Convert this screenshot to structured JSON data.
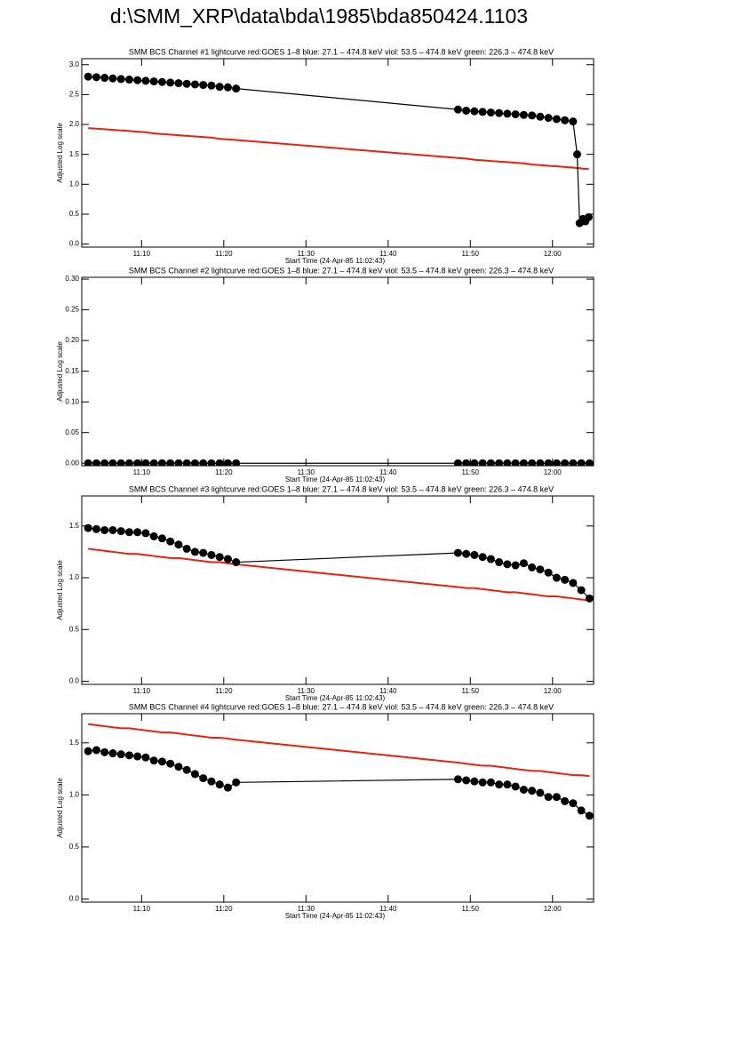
{
  "page_title": "d:\\SMM_XRP\\data\\bda\\1985\\bda850424.1103",
  "chart_data": [
    {
      "type": "line",
      "title": "SMM BCS Channel #1 lightcurve  red:GOES 1–8  blue: 27.1 – 474.8 keV  viol: 53.5 – 474.8 keV  green: 226.3 – 474.8 keV",
      "x_label": "Start Time (24-Apr-85 11:02:43)",
      "y_label": "Adjusted Log scale",
      "xlim": [
        662.72,
        725
      ],
      "ylim": [
        -0.05,
        3.1
      ],
      "xticks": [
        {
          "value": 670,
          "label": "11:10"
        },
        {
          "value": 680,
          "label": "11:20"
        },
        {
          "value": 690,
          "label": "11:30"
        },
        {
          "value": 700,
          "label": "11:40"
        },
        {
          "value": 710,
          "label": "11:50"
        },
        {
          "value": 720,
          "label": "12:00"
        }
      ],
      "yticks": [
        {
          "value": 0,
          "label": "0.0"
        },
        {
          "value": 0.5,
          "label": "0.5"
        },
        {
          "value": 1,
          "label": "1.0"
        },
        {
          "value": 1.5,
          "label": "1.5"
        },
        {
          "value": 2,
          "label": "2.0"
        },
        {
          "value": 2.5,
          "label": "2.5"
        },
        {
          "value": 3,
          "label": "3.0"
        }
      ],
      "x": [
        663.5,
        664.5,
        665.5,
        666.5,
        667.5,
        668.5,
        669.5,
        670.5,
        671.5,
        672.5,
        673.5,
        674.5,
        675.5,
        676.5,
        677.5,
        678.5,
        679.5,
        680.5,
        681.5,
        708.5,
        709.5,
        710.5,
        711.5,
        712.5,
        713.5,
        714.5,
        715.5,
        716.5,
        717.5,
        718.5,
        719.5,
        720.5,
        721.5,
        722.5,
        723.0,
        723.3,
        723.7,
        724.0,
        724.4
      ],
      "series": [
        {
          "color": "#e8220f",
          "markers": false,
          "values": [
            1.94,
            1.93,
            1.92,
            1.91,
            1.9,
            1.89,
            1.88,
            1.87,
            1.85,
            1.84,
            1.83,
            1.82,
            1.81,
            1.8,
            1.79,
            1.78,
            1.76,
            1.75,
            1.74,
            1.44,
            1.43,
            1.41,
            1.4,
            1.39,
            1.38,
            1.37,
            1.36,
            1.35,
            1.33,
            1.32,
            1.31,
            1.3,
            1.29,
            1.28,
            1.27,
            1.27,
            1.26,
            1.26,
            1.26
          ]
        },
        {
          "color": "#000000",
          "markers": true,
          "values": [
            2.8,
            2.79,
            2.78,
            2.77,
            2.76,
            2.75,
            2.74,
            2.73,
            2.72,
            2.71,
            2.7,
            2.69,
            2.68,
            2.67,
            2.66,
            2.65,
            2.63,
            2.62,
            2.6,
            2.25,
            2.23,
            2.22,
            2.21,
            2.2,
            2.19,
            2.18,
            2.17,
            2.16,
            2.15,
            2.13,
            2.11,
            2.09,
            2.07,
            2.05,
            1.5,
            0.35,
            0.42,
            0.38,
            0.45
          ]
        }
      ]
    },
    {
      "type": "line",
      "title": "SMM BCS Channel #2 lightcurve  red:GOES 1–8  blue: 27.1 – 474.8 keV  viol: 53.5 – 474.8 keV  green: 226.3 – 474.8 keV",
      "x_label": "Start Time (24-Apr-85 11:02:43)",
      "y_label": "Adjusted Log scale",
      "xlim": [
        662.72,
        725
      ],
      "ylim": [
        -0.004,
        0.303
      ],
      "xticks": [
        {
          "value": 670,
          "label": "11:10"
        },
        {
          "value": 680,
          "label": "11:20"
        },
        {
          "value": 690,
          "label": "11:30"
        },
        {
          "value": 700,
          "label": "11:40"
        },
        {
          "value": 710,
          "label": "11:50"
        },
        {
          "value": 720,
          "label": "12:00"
        }
      ],
      "yticks": [
        {
          "value": 0,
          "label": "0.00"
        },
        {
          "value": 0.05,
          "label": "0.05"
        },
        {
          "value": 0.1,
          "label": "0.10"
        },
        {
          "value": 0.15,
          "label": "0.15"
        },
        {
          "value": 0.2,
          "label": "0.20"
        },
        {
          "value": 0.25,
          "label": "0.25"
        },
        {
          "value": 0.3,
          "label": "0.30"
        }
      ],
      "x": [
        663.5,
        664.5,
        665.5,
        666.5,
        667.5,
        668.5,
        669.5,
        670.5,
        671.5,
        672.5,
        673.5,
        674.5,
        675.5,
        676.5,
        677.5,
        678.5,
        679.5,
        680.5,
        681.5,
        708.5,
        709.5,
        710.5,
        711.5,
        712.5,
        713.5,
        714.5,
        715.5,
        716.5,
        717.5,
        718.5,
        719.5,
        720.5,
        721.5,
        722.5,
        723.5,
        724.5
      ],
      "series": [
        {
          "color": "#000000",
          "markers": true,
          "values": [
            0,
            0,
            0,
            0,
            0,
            0,
            0,
            0,
            0,
            0,
            0,
            0,
            0,
            0,
            0,
            0,
            0,
            0,
            0,
            0,
            0,
            0,
            0,
            0,
            0,
            0,
            0,
            0,
            0,
            0,
            0,
            0,
            0,
            0,
            0,
            0
          ]
        }
      ]
    },
    {
      "type": "line",
      "title": "SMM BCS Channel #3 lightcurve  red:GOES 1–8  blue: 27.1 – 474.8 keV  viol: 53.5 – 474.8 keV  green: 226.3 – 474.8 keV",
      "x_label": "Start Time (24-Apr-85 11:02:43)",
      "y_label": "Adjusted Log scale",
      "xlim": [
        662.72,
        725
      ],
      "ylim": [
        -0.03,
        1.79
      ],
      "xticks": [
        {
          "value": 670,
          "label": "11:10"
        },
        {
          "value": 680,
          "label": "11:20"
        },
        {
          "value": 690,
          "label": "11:30"
        },
        {
          "value": 700,
          "label": "11:40"
        },
        {
          "value": 710,
          "label": "11:50"
        },
        {
          "value": 720,
          "label": "12:00"
        }
      ],
      "yticks": [
        {
          "value": 0,
          "label": "0.0"
        },
        {
          "value": 0.5,
          "label": "0.5"
        },
        {
          "value": 1,
          "label": "1.0"
        },
        {
          "value": 1.5,
          "label": "1.5"
        }
      ],
      "x": [
        663.5,
        664.5,
        665.5,
        666.5,
        667.5,
        668.5,
        669.5,
        670.5,
        671.5,
        672.5,
        673.5,
        674.5,
        675.5,
        676.5,
        677.5,
        678.5,
        679.5,
        680.5,
        681.5,
        708.5,
        709.5,
        710.5,
        711.5,
        712.5,
        713.5,
        714.5,
        715.5,
        716.5,
        717.5,
        718.5,
        719.5,
        720.5,
        721.5,
        722.5,
        723.5,
        724.5
      ],
      "series": [
        {
          "color": "#e8220f",
          "markers": false,
          "values": [
            1.28,
            1.27,
            1.26,
            1.25,
            1.24,
            1.23,
            1.23,
            1.22,
            1.21,
            1.2,
            1.19,
            1.19,
            1.18,
            1.17,
            1.16,
            1.15,
            1.15,
            1.14,
            1.13,
            0.91,
            0.9,
            0.9,
            0.89,
            0.88,
            0.87,
            0.86,
            0.86,
            0.85,
            0.84,
            0.83,
            0.82,
            0.82,
            0.81,
            0.8,
            0.79,
            0.78
          ]
        },
        {
          "color": "#000000",
          "markers": true,
          "values": [
            1.48,
            1.47,
            1.46,
            1.46,
            1.45,
            1.44,
            1.44,
            1.43,
            1.4,
            1.38,
            1.35,
            1.32,
            1.28,
            1.25,
            1.24,
            1.22,
            1.2,
            1.18,
            1.15,
            1.24,
            1.23,
            1.22,
            1.2,
            1.18,
            1.15,
            1.13,
            1.12,
            1.14,
            1.1,
            1.08,
            1.05,
            1.0,
            0.98,
            0.95,
            0.88,
            0.8
          ]
        }
      ]
    },
    {
      "type": "line",
      "title": "SMM BCS Channel #4 lightcurve  red:GOES 1–8  blue: 27.1 – 474.8 keV  viol: 53.5 – 474.8 keV  green: 226.3 – 474.8 keV",
      "x_label": "Start Time (24-Apr-85 11:02:43)",
      "y_label": "Adjusted Log scale",
      "xlim": [
        662.72,
        725
      ],
      "ylim": [
        -0.03,
        1.78
      ],
      "xticks": [
        {
          "value": 670,
          "label": "11:10"
        },
        {
          "value": 680,
          "label": "11:20"
        },
        {
          "value": 690,
          "label": "11:30"
        },
        {
          "value": 700,
          "label": "11:40"
        },
        {
          "value": 710,
          "label": "11:50"
        },
        {
          "value": 720,
          "label": "12:00"
        }
      ],
      "yticks": [
        {
          "value": 0,
          "label": "0.0"
        },
        {
          "value": 0.5,
          "label": "0.5"
        },
        {
          "value": 1,
          "label": "1.0"
        },
        {
          "value": 1.5,
          "label": "1.5"
        }
      ],
      "x": [
        663.5,
        664.5,
        665.5,
        666.5,
        667.5,
        668.5,
        669.5,
        670.5,
        671.5,
        672.5,
        673.5,
        674.5,
        675.5,
        676.5,
        677.5,
        678.5,
        679.5,
        680.5,
        681.5,
        708.5,
        709.5,
        710.5,
        711.5,
        712.5,
        713.5,
        714.5,
        715.5,
        716.5,
        717.5,
        718.5,
        719.5,
        720.5,
        721.5,
        722.5,
        723.5,
        724.5
      ],
      "series": [
        {
          "color": "#e8220f",
          "markers": false,
          "values": [
            1.68,
            1.67,
            1.66,
            1.65,
            1.64,
            1.64,
            1.63,
            1.62,
            1.61,
            1.6,
            1.6,
            1.59,
            1.58,
            1.57,
            1.56,
            1.55,
            1.55,
            1.54,
            1.53,
            1.31,
            1.3,
            1.29,
            1.28,
            1.28,
            1.27,
            1.26,
            1.25,
            1.24,
            1.23,
            1.23,
            1.22,
            1.21,
            1.2,
            1.19,
            1.19,
            1.18
          ]
        },
        {
          "color": "#000000",
          "markers": true,
          "values": [
            1.42,
            1.43,
            1.41,
            1.4,
            1.39,
            1.38,
            1.37,
            1.36,
            1.33,
            1.32,
            1.3,
            1.27,
            1.24,
            1.2,
            1.16,
            1.13,
            1.1,
            1.07,
            1.12,
            1.15,
            1.14,
            1.13,
            1.12,
            1.12,
            1.1,
            1.1,
            1.08,
            1.05,
            1.04,
            1.02,
            0.98,
            0.98,
            0.94,
            0.92,
            0.85,
            0.8
          ]
        }
      ]
    }
  ]
}
